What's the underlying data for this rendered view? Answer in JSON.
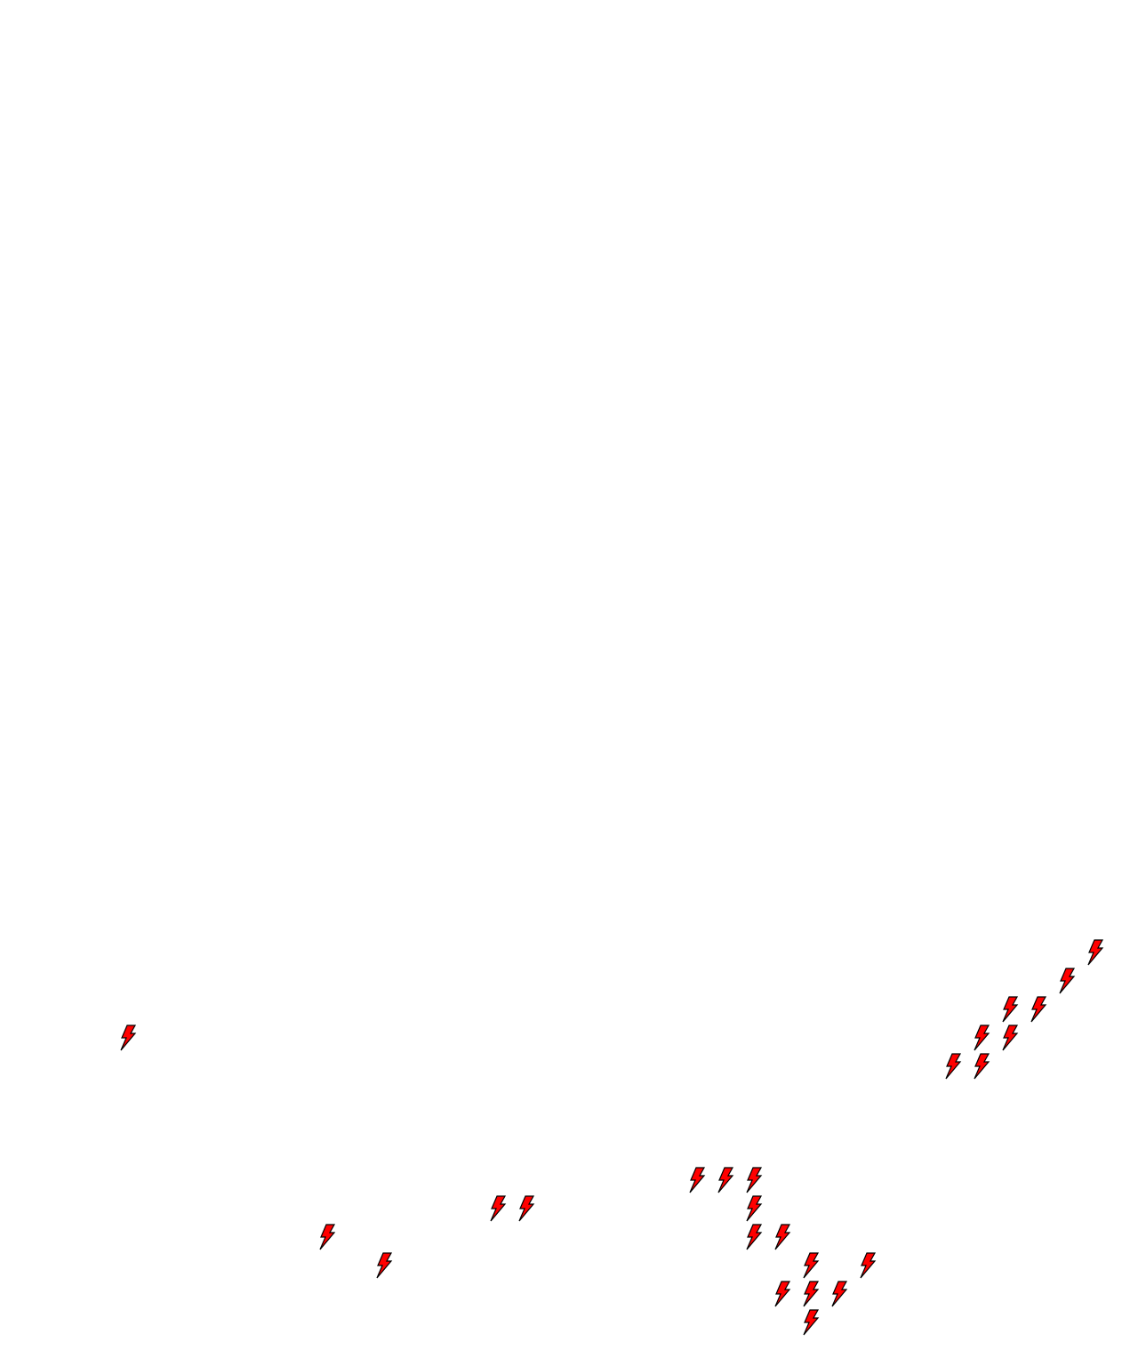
{
  "map": {
    "background_color": "#ffffff",
    "marker_icon": "lightning-bolt-icon",
    "marker_fill": "#ff0000",
    "marker_stroke": "#000000",
    "marker_count": 25
  }
}
